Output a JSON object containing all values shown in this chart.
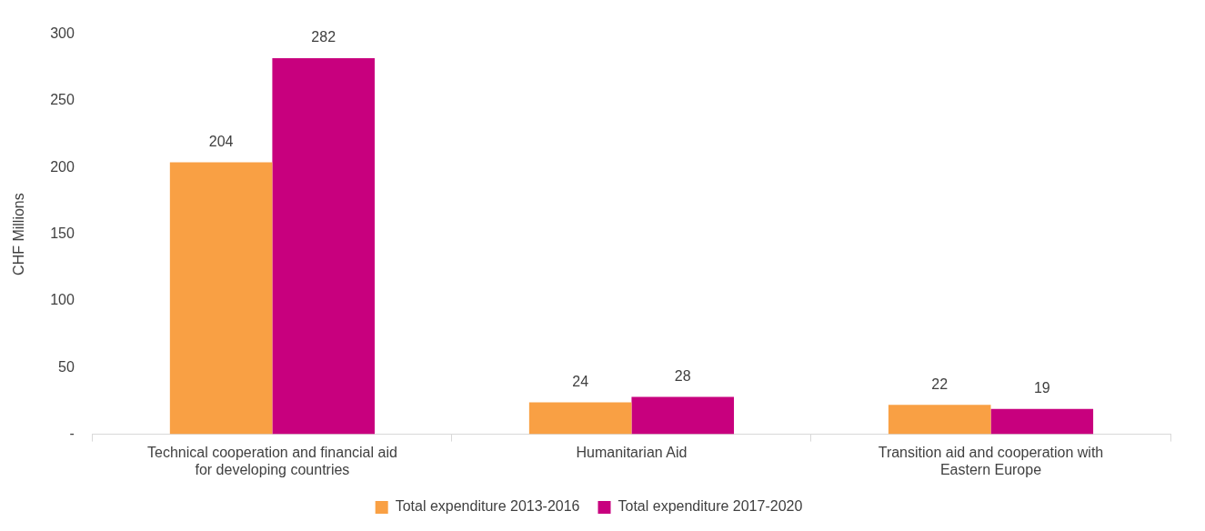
{
  "chart_data": {
    "type": "bar",
    "ylabel": "CHF Millions",
    "categories": [
      "Technical cooperation and financial aid for developing countries",
      "Humanitarian Aid",
      "Transition aid and cooperation with Eastern Europe"
    ],
    "series": [
      {
        "name": "Total expenditure 2013-2016",
        "color": "#f9a044",
        "values": [
          204,
          24,
          22
        ]
      },
      {
        "name": "Total expenditure 2017-2020",
        "color": "#c8007e",
        "values": [
          282,
          28,
          19
        ]
      }
    ],
    "ylim": [
      0,
      300
    ],
    "yticks": [
      {
        "value": 0,
        "label": "-"
      },
      50,
      100,
      150,
      200,
      250,
      300
    ],
    "data_labels": true,
    "legend": "bottom"
  }
}
